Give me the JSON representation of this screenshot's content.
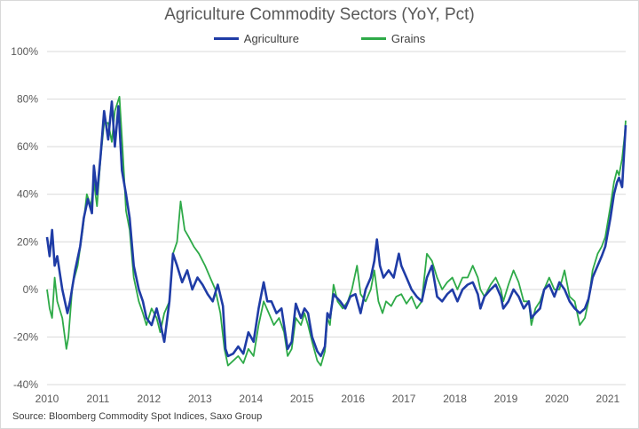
{
  "chart_data": {
    "type": "line",
    "title": "Agriculture Commodity Sectors (YoY, Pct)",
    "xlabel": "",
    "ylabel": "",
    "source": "Source: Bloomberg Commodity Spot Indices, Saxo Group",
    "ylim": [
      -40,
      100
    ],
    "xlim": [
      2010.0,
      2021.35
    ],
    "y_ticks": [
      -40,
      -20,
      0,
      20,
      40,
      60,
      80,
      100
    ],
    "y_tick_labels": [
      "-40%",
      "-20%",
      "0%",
      "20%",
      "40%",
      "60%",
      "80%",
      "100%"
    ],
    "x_ticks": [
      2010,
      2011,
      2012,
      2013,
      2014,
      2015,
      2016,
      2017,
      2018,
      2019,
      2020,
      2021
    ],
    "x_tick_labels": [
      "2010",
      "2011",
      "2012",
      "2013",
      "2014",
      "2015",
      "2016",
      "2017",
      "2018",
      "2019",
      "2020",
      "2021"
    ],
    "grid": "horizontal",
    "legend_position": "top-center",
    "series": [
      {
        "name": "Agriculture",
        "color": "#1f3ca6",
        "points": [
          [
            2010.0,
            22
          ],
          [
            2010.05,
            14
          ],
          [
            2010.1,
            25
          ],
          [
            2010.15,
            10
          ],
          [
            2010.2,
            14
          ],
          [
            2010.3,
            0
          ],
          [
            2010.4,
            -10
          ],
          [
            2010.45,
            -5
          ],
          [
            2010.55,
            8
          ],
          [
            2010.65,
            18
          ],
          [
            2010.72,
            30
          ],
          [
            2010.8,
            38
          ],
          [
            2010.88,
            32
          ],
          [
            2010.92,
            52
          ],
          [
            2010.98,
            40
          ],
          [
            2011.05,
            56
          ],
          [
            2011.12,
            75
          ],
          [
            2011.2,
            63
          ],
          [
            2011.27,
            79
          ],
          [
            2011.33,
            60
          ],
          [
            2011.4,
            77
          ],
          [
            2011.47,
            50
          ],
          [
            2011.55,
            40
          ],
          [
            2011.62,
            30
          ],
          [
            2011.7,
            10
          ],
          [
            2011.8,
            0
          ],
          [
            2011.88,
            -5
          ],
          [
            2011.95,
            -12
          ],
          [
            2012.05,
            -15
          ],
          [
            2012.15,
            -8
          ],
          [
            2012.22,
            -14
          ],
          [
            2012.3,
            -22
          ],
          [
            2012.4,
            -5
          ],
          [
            2012.47,
            15
          ],
          [
            2012.55,
            10
          ],
          [
            2012.65,
            3
          ],
          [
            2012.75,
            8
          ],
          [
            2012.85,
            0
          ],
          [
            2012.95,
            5
          ],
          [
            2013.05,
            2
          ],
          [
            2013.15,
            -2
          ],
          [
            2013.25,
            -5
          ],
          [
            2013.35,
            2
          ],
          [
            2013.45,
            -7
          ],
          [
            2013.5,
            -25
          ],
          [
            2013.55,
            -28
          ],
          [
            2013.65,
            -27
          ],
          [
            2013.75,
            -24
          ],
          [
            2013.85,
            -27
          ],
          [
            2013.95,
            -18
          ],
          [
            2014.05,
            -22
          ],
          [
            2014.15,
            -8
          ],
          [
            2014.25,
            3
          ],
          [
            2014.32,
            -5
          ],
          [
            2014.4,
            -5
          ],
          [
            2014.5,
            -10
          ],
          [
            2014.6,
            -8
          ],
          [
            2014.72,
            -25
          ],
          [
            2014.8,
            -22
          ],
          [
            2014.88,
            -6
          ],
          [
            2014.98,
            -12
          ],
          [
            2015.05,
            -8
          ],
          [
            2015.12,
            -10
          ],
          [
            2015.2,
            -20
          ],
          [
            2015.3,
            -26
          ],
          [
            2015.37,
            -28
          ],
          [
            2015.45,
            -24
          ],
          [
            2015.5,
            -10
          ],
          [
            2015.55,
            -12
          ],
          [
            2015.62,
            -2
          ],
          [
            2015.75,
            -5
          ],
          [
            2015.85,
            -8
          ],
          [
            2015.95,
            -3
          ],
          [
            2016.05,
            -2
          ],
          [
            2016.15,
            -10
          ],
          [
            2016.25,
            0
          ],
          [
            2016.35,
            5
          ],
          [
            2016.42,
            12
          ],
          [
            2016.47,
            21
          ],
          [
            2016.53,
            10
          ],
          [
            2016.6,
            5
          ],
          [
            2016.7,
            8
          ],
          [
            2016.8,
            5
          ],
          [
            2016.9,
            15
          ],
          [
            2016.95,
            10
          ],
          [
            2017.05,
            5
          ],
          [
            2017.15,
            0
          ],
          [
            2017.25,
            -3
          ],
          [
            2017.35,
            -5
          ],
          [
            2017.45,
            5
          ],
          [
            2017.55,
            10
          ],
          [
            2017.65,
            -3
          ],
          [
            2017.75,
            -5
          ],
          [
            2017.85,
            -2
          ],
          [
            2017.95,
            0
          ],
          [
            2018.05,
            -5
          ],
          [
            2018.15,
            0
          ],
          [
            2018.25,
            2
          ],
          [
            2018.35,
            3
          ],
          [
            2018.45,
            -2
          ],
          [
            2018.5,
            -8
          ],
          [
            2018.58,
            -3
          ],
          [
            2018.7,
            0
          ],
          [
            2018.8,
            2
          ],
          [
            2018.9,
            -3
          ],
          [
            2018.95,
            -8
          ],
          [
            2019.05,
            -5
          ],
          [
            2019.15,
            0
          ],
          [
            2019.25,
            -3
          ],
          [
            2019.35,
            -8
          ],
          [
            2019.45,
            -5
          ],
          [
            2019.5,
            -12
          ],
          [
            2019.58,
            -10
          ],
          [
            2019.67,
            -8
          ],
          [
            2019.75,
            0
          ],
          [
            2019.85,
            2
          ],
          [
            2019.95,
            -3
          ],
          [
            2020.05,
            3
          ],
          [
            2020.15,
            0
          ],
          [
            2020.25,
            -5
          ],
          [
            2020.35,
            -8
          ],
          [
            2020.45,
            -10
          ],
          [
            2020.55,
            -8
          ],
          [
            2020.62,
            -4
          ],
          [
            2020.7,
            5
          ],
          [
            2020.8,
            10
          ],
          [
            2020.88,
            14
          ],
          [
            2020.95,
            18
          ],
          [
            2021.05,
            30
          ],
          [
            2021.12,
            40
          ],
          [
            2021.18,
            45
          ],
          [
            2021.22,
            47
          ],
          [
            2021.28,
            43
          ],
          [
            2021.33,
            62
          ],
          [
            2021.35,
            69
          ]
        ]
      },
      {
        "name": "Grains",
        "color": "#2eaa48",
        "points": [
          [
            2010.0,
            0
          ],
          [
            2010.05,
            -8
          ],
          [
            2010.1,
            -12
          ],
          [
            2010.15,
            5
          ],
          [
            2010.2,
            -5
          ],
          [
            2010.3,
            -12
          ],
          [
            2010.38,
            -25
          ],
          [
            2010.42,
            -20
          ],
          [
            2010.5,
            2
          ],
          [
            2010.6,
            10
          ],
          [
            2010.7,
            25
          ],
          [
            2010.78,
            40
          ],
          [
            2010.86,
            35
          ],
          [
            2010.92,
            45
          ],
          [
            2010.98,
            35
          ],
          [
            2011.05,
            55
          ],
          [
            2011.12,
            70
          ],
          [
            2011.2,
            70
          ],
          [
            2011.27,
            62
          ],
          [
            2011.33,
            75
          ],
          [
            2011.42,
            81
          ],
          [
            2011.48,
            60
          ],
          [
            2011.55,
            33
          ],
          [
            2011.62,
            25
          ],
          [
            2011.7,
            5
          ],
          [
            2011.8,
            -5
          ],
          [
            2011.88,
            -10
          ],
          [
            2011.95,
            -15
          ],
          [
            2012.05,
            -8
          ],
          [
            2012.15,
            -12
          ],
          [
            2012.22,
            -18
          ],
          [
            2012.3,
            -10
          ],
          [
            2012.4,
            -5
          ],
          [
            2012.47,
            15
          ],
          [
            2012.55,
            20
          ],
          [
            2012.62,
            37
          ],
          [
            2012.7,
            25
          ],
          [
            2012.78,
            22
          ],
          [
            2012.88,
            18
          ],
          [
            2012.98,
            15
          ],
          [
            2013.1,
            10
          ],
          [
            2013.2,
            5
          ],
          [
            2013.3,
            0
          ],
          [
            2013.4,
            -10
          ],
          [
            2013.48,
            -25
          ],
          [
            2013.55,
            -32
          ],
          [
            2013.65,
            -30
          ],
          [
            2013.75,
            -28
          ],
          [
            2013.85,
            -31
          ],
          [
            2013.95,
            -25
          ],
          [
            2014.05,
            -28
          ],
          [
            2014.15,
            -15
          ],
          [
            2014.25,
            -5
          ],
          [
            2014.35,
            -10
          ],
          [
            2014.45,
            -15
          ],
          [
            2014.55,
            -12
          ],
          [
            2014.65,
            -18
          ],
          [
            2014.72,
            -28
          ],
          [
            2014.8,
            -25
          ],
          [
            2014.88,
            -12
          ],
          [
            2014.98,
            -15
          ],
          [
            2015.05,
            -10
          ],
          [
            2015.12,
            -15
          ],
          [
            2015.2,
            -22
          ],
          [
            2015.3,
            -30
          ],
          [
            2015.37,
            -32
          ],
          [
            2015.45,
            -26
          ],
          [
            2015.5,
            -12
          ],
          [
            2015.55,
            -15
          ],
          [
            2015.62,
            2
          ],
          [
            2015.7,
            -5
          ],
          [
            2015.8,
            -8
          ],
          [
            2015.9,
            -5
          ],
          [
            2015.98,
            0
          ],
          [
            2016.08,
            10
          ],
          [
            2016.15,
            -2
          ],
          [
            2016.25,
            -5
          ],
          [
            2016.35,
            0
          ],
          [
            2016.42,
            8
          ],
          [
            2016.5,
            -5
          ],
          [
            2016.58,
            -10
          ],
          [
            2016.65,
            -5
          ],
          [
            2016.75,
            -7
          ],
          [
            2016.85,
            -3
          ],
          [
            2016.95,
            -2
          ],
          [
            2017.05,
            -6
          ],
          [
            2017.15,
            -3
          ],
          [
            2017.25,
            -8
          ],
          [
            2017.35,
            -5
          ],
          [
            2017.45,
            15
          ],
          [
            2017.55,
            12
          ],
          [
            2017.65,
            5
          ],
          [
            2017.75,
            0
          ],
          [
            2017.85,
            3
          ],
          [
            2017.95,
            5
          ],
          [
            2018.05,
            0
          ],
          [
            2018.15,
            5
          ],
          [
            2018.25,
            5
          ],
          [
            2018.35,
            10
          ],
          [
            2018.45,
            5
          ],
          [
            2018.5,
            0
          ],
          [
            2018.58,
            -3
          ],
          [
            2018.7,
            2
          ],
          [
            2018.8,
            5
          ],
          [
            2018.9,
            0
          ],
          [
            2018.95,
            -5
          ],
          [
            2019.05,
            2
          ],
          [
            2019.15,
            8
          ],
          [
            2019.25,
            3
          ],
          [
            2019.35,
            -5
          ],
          [
            2019.45,
            -5
          ],
          [
            2019.5,
            -15
          ],
          [
            2019.58,
            -8
          ],
          [
            2019.67,
            -5
          ],
          [
            2019.75,
            0
          ],
          [
            2019.85,
            5
          ],
          [
            2019.95,
            0
          ],
          [
            2020.05,
            0
          ],
          [
            2020.15,
            8
          ],
          [
            2020.25,
            -3
          ],
          [
            2020.35,
            -5
          ],
          [
            2020.45,
            -15
          ],
          [
            2020.55,
            -12
          ],
          [
            2020.62,
            -5
          ],
          [
            2020.7,
            8
          ],
          [
            2020.8,
            15
          ],
          [
            2020.88,
            18
          ],
          [
            2020.95,
            22
          ],
          [
            2021.05,
            35
          ],
          [
            2021.12,
            45
          ],
          [
            2021.18,
            50
          ],
          [
            2021.22,
            48
          ],
          [
            2021.28,
            55
          ],
          [
            2021.33,
            65
          ],
          [
            2021.35,
            71
          ]
        ]
      }
    ]
  }
}
